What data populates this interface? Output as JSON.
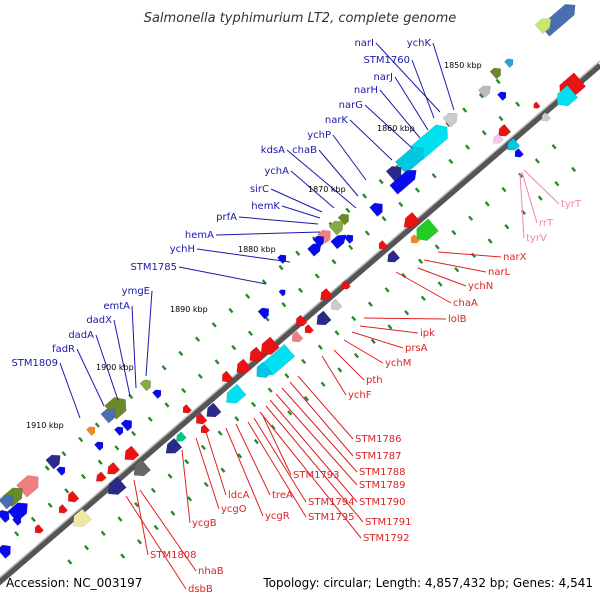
{
  "title": "Salmonella typhimurium LT2, complete genome",
  "accession": "Accession: NC_003197",
  "topology": "Topology: circular; Length: 4,857,432 bp; Genes: 4,541",
  "colors": {
    "forward_label": "#1a1aaa",
    "reverse_label": "#dd2222",
    "rna_label": "#ee88aa",
    "backbone": "#666666",
    "tick": "#2a8a2a"
  },
  "position_labels": [
    "1850 kbp",
    "1860 kbp",
    "1870 kbp",
    "1880 kbp",
    "1890 kbp",
    "1900 kbp",
    "1910 kbp"
  ],
  "forward_genes": [
    "narI",
    "ychK",
    "STM1760",
    "narJ",
    "narH",
    "narG",
    "narK",
    "ychP",
    "chaB",
    "kdsA",
    "ychA",
    "sirC",
    "hemK",
    "prfA",
    "hemA",
    "ychH",
    "STM1785",
    "ymgE",
    "emtA",
    "dadX",
    "dadA",
    "fadR",
    "STM1809"
  ],
  "reverse_genes": [
    "narX",
    "narL",
    "ychN",
    "chaA",
    "lolB",
    "ipk",
    "prsA",
    "ychM",
    "pth",
    "ychF",
    "STM1786",
    "STM1787",
    "STM1788",
    "STM1789",
    "STM1790",
    "STM1791",
    "STM1792",
    "STM1793",
    "STM1794",
    "STM1795",
    "treA",
    "ycgR",
    "ldcA",
    "ycgO",
    "ycgB",
    "STM1808",
    "nhaB",
    "dsbB"
  ],
  "rna_genes": [
    "tyrT",
    "rrT",
    "tyrV"
  ]
}
